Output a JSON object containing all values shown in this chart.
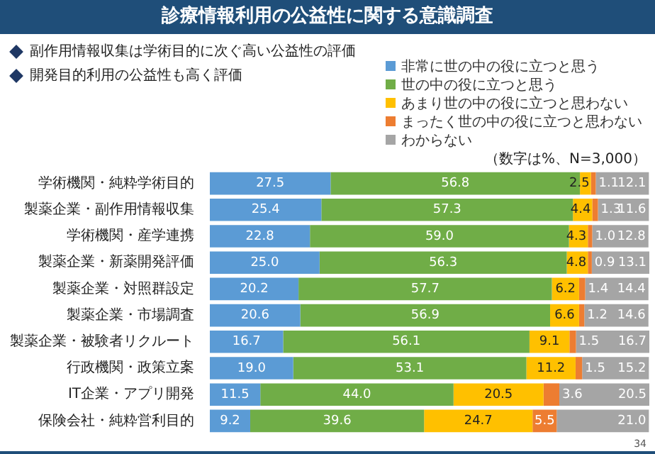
{
  "chart_data": {
    "type": "bar",
    "orientation": "horizontal",
    "stacked": true,
    "tick_labels": "y",
    "title": "診療情報利用の公益性に関する意識調査",
    "annotations": [
      "副作用情報収集は学術目的に次ぐ高い公益性の評価",
      "開発目的利用の公益性も高く評価",
      "（数字は%、N=3,000）",
      "34"
    ],
    "legend": "top right",
    "categories": [
      "学術機関・純粋学術目的",
      "製薬企業・副作用情報収集",
      "学術機関・産学連携",
      "製薬企業・新薬開発評価",
      "製薬企業・対照群設定",
      "製薬企業・市場調査",
      "製薬企業・被験者リクルート",
      "行政機関・政策立案",
      "IT企業・アプリ開発",
      "保険会社・純粋営利目的"
    ],
    "series": [
      {
        "name": "非常に世の中の役に立つと思う",
        "color": "#5b9bd5",
        "values": [
          27.5,
          25.4,
          22.8,
          25.0,
          20.2,
          20.6,
          16.7,
          19.0,
          11.5,
          9.2
        ],
        "value_labels": [
          "27.5",
          "25.4",
          "22.8",
          "25.0",
          "20.2",
          "20.6",
          "16.7",
          "19.0",
          "11.5",
          "9.2"
        ]
      },
      {
        "name": "世の中の役に立つと思う",
        "color": "#70ad47",
        "values": [
          56.8,
          57.3,
          59.0,
          56.3,
          57.7,
          56.9,
          56.1,
          53.1,
          44.0,
          39.6
        ],
        "value_labels": [
          "56.8",
          "57.3",
          "59.0",
          "56.3",
          "57.7",
          "56.9",
          "56.1",
          "53.1",
          "44.0",
          "39.6"
        ]
      },
      {
        "name": "あまり世の中の役に立つと思わない",
        "color": "#ffc000",
        "values": [
          2.5,
          4.4,
          4.3,
          4.8,
          6.2,
          6.6,
          9.1,
          11.2,
          20.5,
          24.7
        ],
        "value_labels": [
          "2.5",
          "4.4",
          "4.3",
          "4.8",
          "6.2",
          "6.6",
          "9.1",
          "11.2",
          "20.5",
          "24.7"
        ]
      },
      {
        "name": "まったく世の中の役に立つと思わない",
        "color": "#ed7d31",
        "values": [
          1.1,
          1.3,
          1.0,
          0.9,
          1.4,
          1.2,
          1.5,
          1.5,
          3.6,
          5.5
        ],
        "value_labels": [
          "1.1",
          "1.3",
          "1.0",
          "0.9",
          "1.4",
          "1.2",
          "1.5",
          "1.5",
          "3.6",
          "5.5"
        ]
      },
      {
        "name": "わからない",
        "color": "#a5a5a5",
        "values": [
          12.1,
          11.6,
          12.8,
          13.1,
          14.4,
          14.6,
          16.7,
          15.2,
          20.5,
          21.0
        ],
        "value_labels": [
          "12.1",
          "11.6",
          "12.8",
          "13.1",
          "14.4",
          "14.6",
          "16.7",
          "15.2",
          "20.5",
          "21.0"
        ]
      }
    ]
  }
}
